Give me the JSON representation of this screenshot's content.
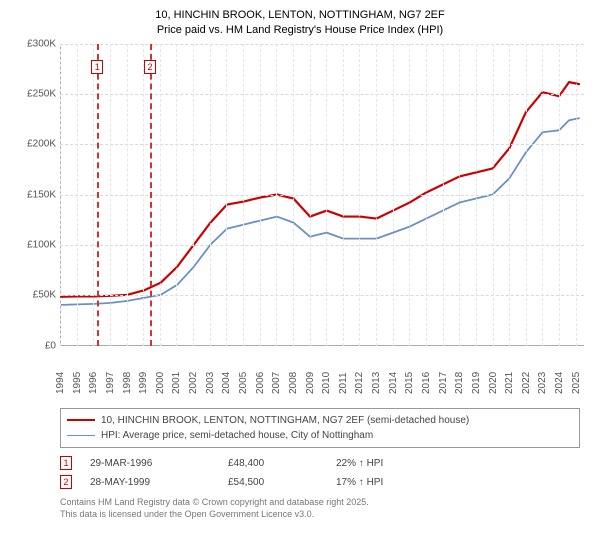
{
  "title": {
    "line1": "10, HINCHIN BROOK, LENTON, NOTTINGHAM, NG7 2EF",
    "line2": "Price paid vs. HM Land Registry's House Price Index (HPI)"
  },
  "chart": {
    "type": "line",
    "background_color": "#ffffff",
    "grid_color": "#d9d9d9",
    "axis_color": "#aaaaaa",
    "tick_color": "#555555",
    "tick_fontsize": 10,
    "x": {
      "min": 1994,
      "max": 2025.5,
      "ticks": [
        1994,
        1995,
        1996,
        1997,
        1998,
        1999,
        2000,
        2001,
        2002,
        2003,
        2004,
        2005,
        2006,
        2007,
        2008,
        2009,
        2010,
        2011,
        2012,
        2013,
        2014,
        2015,
        2016,
        2017,
        2018,
        2019,
        2020,
        2021,
        2022,
        2023,
        2024,
        2025
      ]
    },
    "y": {
      "min": 0,
      "max": 300000,
      "ticks": [
        0,
        50000,
        100000,
        150000,
        200000,
        250000,
        300000
      ],
      "tick_labels": [
        "£0",
        "£50K",
        "£100K",
        "£150K",
        "£200K",
        "£250K",
        "£300K"
      ]
    },
    "series": [
      {
        "id": "price_paid",
        "label": "10, HINCHIN BROOK, LENTON, NOTTINGHAM, NG7 2EF (semi-detached house)",
        "color": "#cc0000",
        "line_width": 2.2,
        "data": [
          [
            1994,
            48000
          ],
          [
            1995,
            48500
          ],
          [
            1996,
            48400
          ],
          [
            1997,
            49000
          ],
          [
            1998,
            50000
          ],
          [
            1999,
            54500
          ],
          [
            2000,
            62000
          ],
          [
            2001,
            78000
          ],
          [
            2002,
            100000
          ],
          [
            2003,
            122000
          ],
          [
            2004,
            140000
          ],
          [
            2005,
            143000
          ],
          [
            2006,
            147000
          ],
          [
            2007,
            150000
          ],
          [
            2008,
            146000
          ],
          [
            2009,
            128000
          ],
          [
            2010,
            134000
          ],
          [
            2011,
            128000
          ],
          [
            2012,
            128000
          ],
          [
            2013,
            126000
          ],
          [
            2014,
            134000
          ],
          [
            2015,
            142000
          ],
          [
            2016,
            152000
          ],
          [
            2017,
            160000
          ],
          [
            2018,
            168000
          ],
          [
            2019,
            172000
          ],
          [
            2020,
            176000
          ],
          [
            2021,
            196000
          ],
          [
            2022,
            232000
          ],
          [
            2023,
            252000
          ],
          [
            2024,
            248000
          ],
          [
            2024.6,
            262000
          ],
          [
            2025.2,
            260000
          ]
        ]
      },
      {
        "id": "hpi",
        "label": "HPI: Average price, semi-detached house, City of Nottingham",
        "color": "#6b8fc7",
        "line_width": 1.8,
        "data": [
          [
            1994,
            40000
          ],
          [
            1995,
            40500
          ],
          [
            1996,
            41000
          ],
          [
            1997,
            42000
          ],
          [
            1998,
            44000
          ],
          [
            1999,
            47000
          ],
          [
            2000,
            50000
          ],
          [
            2001,
            60000
          ],
          [
            2002,
            78000
          ],
          [
            2003,
            100000
          ],
          [
            2004,
            116000
          ],
          [
            2005,
            120000
          ],
          [
            2006,
            124000
          ],
          [
            2007,
            128000
          ],
          [
            2008,
            122000
          ],
          [
            2009,
            108000
          ],
          [
            2010,
            112000
          ],
          [
            2011,
            106000
          ],
          [
            2012,
            106000
          ],
          [
            2013,
            106000
          ],
          [
            2014,
            112000
          ],
          [
            2015,
            118000
          ],
          [
            2016,
            126000
          ],
          [
            2017,
            134000
          ],
          [
            2018,
            142000
          ],
          [
            2019,
            146000
          ],
          [
            2020,
            150000
          ],
          [
            2021,
            166000
          ],
          [
            2022,
            192000
          ],
          [
            2023,
            212000
          ],
          [
            2024,
            214000
          ],
          [
            2024.6,
            224000
          ],
          [
            2025.2,
            226000
          ]
        ]
      }
    ],
    "sale_markers": [
      {
        "n": "1",
        "x": 1996.24,
        "marker_top_px": 16
      },
      {
        "n": "2",
        "x": 1999.41,
        "marker_top_px": 16
      }
    ],
    "sale_line_color": "#d33333"
  },
  "legend": {
    "border_color": "#999999",
    "items": [
      {
        "color": "#cc0000",
        "text": "10, HINCHIN BROOK, LENTON, NOTTINGHAM, NG7 2EF (semi-detached house)"
      },
      {
        "color": "#6b8fc7",
        "text": "HPI: Average price, semi-detached house, City of Nottingham"
      }
    ]
  },
  "sales_table": {
    "rows": [
      {
        "n": "1",
        "date": "29-MAR-1996",
        "price": "£48,400",
        "delta": "22% ↑ HPI"
      },
      {
        "n": "2",
        "date": "28-MAY-1999",
        "price": "£54,500",
        "delta": "17% ↑ HPI"
      }
    ]
  },
  "footnote": {
    "line1": "Contains HM Land Registry data © Crown copyright and database right 2025.",
    "line2": "This data is licensed under the Open Government Licence v3.0."
  }
}
